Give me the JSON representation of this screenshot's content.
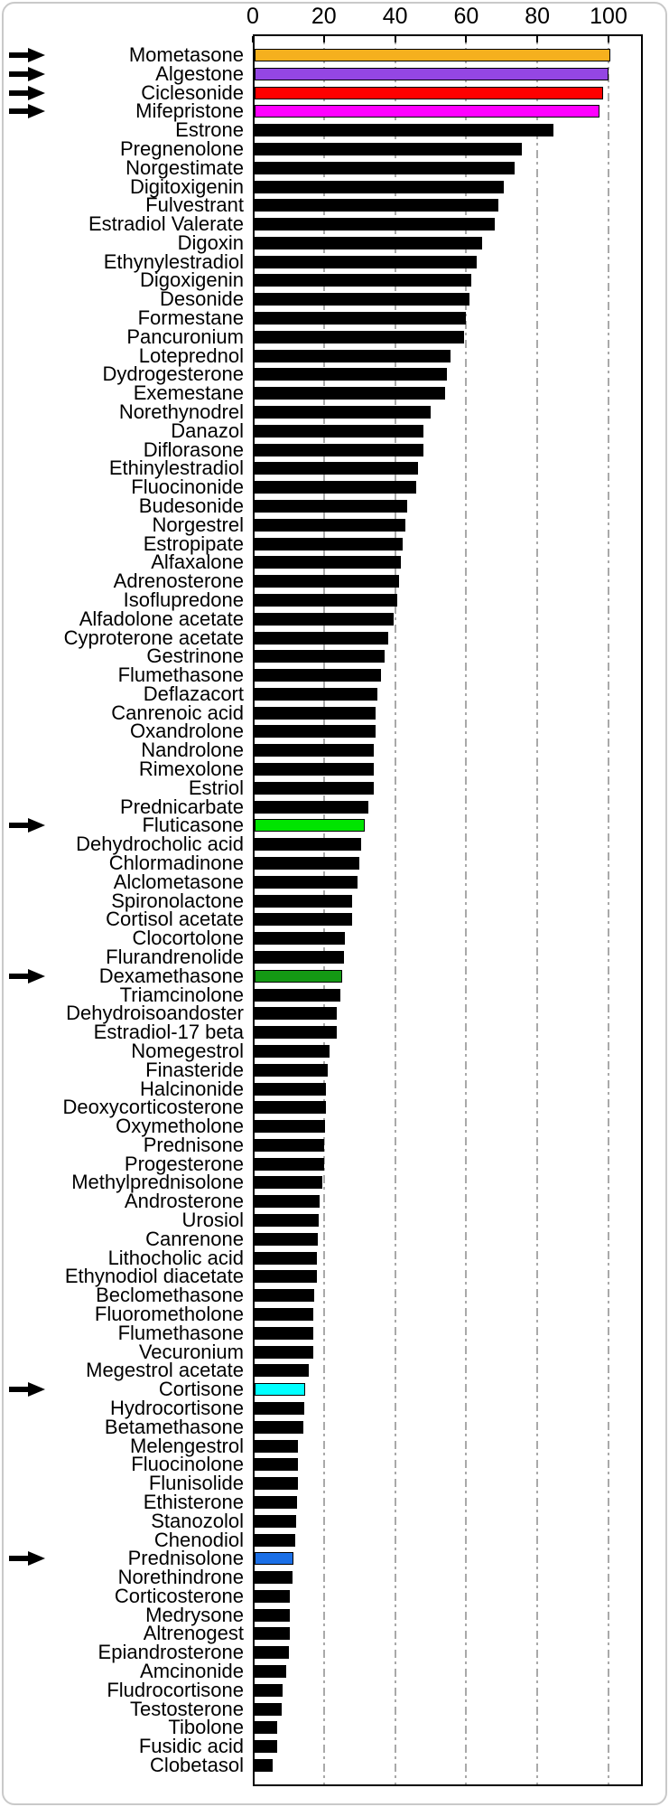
{
  "chart_data": {
    "type": "bar",
    "orientation": "horizontal",
    "title": "",
    "xlabel": "",
    "ylabel": "",
    "axis": {
      "position": "top",
      "ticks": [
        "0",
        "20",
        "40",
        "60",
        "80",
        "100"
      ],
      "tick_values": [
        0,
        20,
        40,
        60,
        80,
        100
      ],
      "range": [
        0,
        110
      ],
      "gridline_values": [
        20,
        40,
        60,
        80,
        100
      ],
      "grid_style": "dash-dot",
      "grid_color": "#a9a9a9",
      "grid_on": true,
      "legend": "none"
    },
    "default_bar_color": "#000000",
    "highlight_border_color": "#000000",
    "arrow_color": "#000000",
    "items": [
      {
        "label": "Mometasone",
        "value": 100,
        "color": "#F5B01E",
        "arrow": true
      },
      {
        "label": "Algestone",
        "value": 99.5,
        "color": "#9446E3",
        "arrow": true
      },
      {
        "label": "Ciclesonide",
        "value": 98,
        "color": "#FF0000",
        "arrow": true
      },
      {
        "label": "Mifepristone",
        "value": 97,
        "color": "#FF00FF",
        "arrow": true
      },
      {
        "label": "Estrone",
        "value": 84
      },
      {
        "label": "Pregnenolone",
        "value": 75
      },
      {
        "label": "Norgestimate",
        "value": 73
      },
      {
        "label": "Digitoxigenin",
        "value": 70
      },
      {
        "label": "Fulvestrant",
        "value": 68.5
      },
      {
        "label": "Estradiol Valerate",
        "value": 67.5
      },
      {
        "label": "Digoxin",
        "value": 64
      },
      {
        "label": "Ethynylestradiol",
        "value": 62.5
      },
      {
        "label": "Digoxigenin",
        "value": 61
      },
      {
        "label": "Desonide",
        "value": 60.5
      },
      {
        "label": "Formestane",
        "value": 59.5
      },
      {
        "label": "Pancuronium",
        "value": 59
      },
      {
        "label": "Loteprednol",
        "value": 55
      },
      {
        "label": "Dydrogesterone",
        "value": 54
      },
      {
        "label": "Exemestane",
        "value": 53.5
      },
      {
        "label": "Norethynodrel",
        "value": 49.5
      },
      {
        "label": "Danazol",
        "value": 47.5
      },
      {
        "label": "Diflorasone",
        "value": 47.5
      },
      {
        "label": "Ethinylestradiol",
        "value": 46
      },
      {
        "label": "Fluocinonide",
        "value": 45.5
      },
      {
        "label": "Budesonide",
        "value": 43
      },
      {
        "label": "Norgestrel",
        "value": 42.5
      },
      {
        "label": "Estropipate",
        "value": 41.5
      },
      {
        "label": "Alfaxalone",
        "value": 41
      },
      {
        "label": "Adrenosterone",
        "value": 40.5
      },
      {
        "label": "Isoflupredone",
        "value": 40
      },
      {
        "label": "Alfadolone acetate",
        "value": 39
      },
      {
        "label": "Cyproterone acetate",
        "value": 37.5
      },
      {
        "label": "Gestrinone",
        "value": 36.5
      },
      {
        "label": "Flumethasone",
        "value": 35.5
      },
      {
        "label": "Deflazacort",
        "value": 34.5
      },
      {
        "label": "Canrenoic acid",
        "value": 34
      },
      {
        "label": "Oxandrolone",
        "value": 34
      },
      {
        "label": "Nandrolone",
        "value": 33.5
      },
      {
        "label": "Rimexolone",
        "value": 33.5
      },
      {
        "label": "Estriol",
        "value": 33.5
      },
      {
        "label": "Prednicarbate",
        "value": 32
      },
      {
        "label": "Fluticasone",
        "value": 31,
        "color": "#00E400",
        "arrow": true
      },
      {
        "label": "Dehydrocholic acid",
        "value": 30
      },
      {
        "label": "Chlormadinone",
        "value": 29.5
      },
      {
        "label": "Alclometasone",
        "value": 29
      },
      {
        "label": "Spironolactone",
        "value": 27.5
      },
      {
        "label": "Cortisol acetate",
        "value": 27.5
      },
      {
        "label": "Clocortolone",
        "value": 25.5
      },
      {
        "label": "Flurandrenolide",
        "value": 25
      },
      {
        "label": "Dexamethasone",
        "value": 24.5,
        "color": "#149914",
        "arrow": true
      },
      {
        "label": "Triamcinolone",
        "value": 24
      },
      {
        "label": "Dehydroisoandoster",
        "value": 23
      },
      {
        "label": "Estradiol-17 beta",
        "value": 23
      },
      {
        "label": "Nomegestrol",
        "value": 21
      },
      {
        "label": "Finasteride",
        "value": 20.5
      },
      {
        "label": "Halcinonide",
        "value": 20
      },
      {
        "label": "Deoxycorticosterone",
        "value": 20
      },
      {
        "label": "Oxymetholone",
        "value": 19.8
      },
      {
        "label": "Prednisone",
        "value": 19.5
      },
      {
        "label": "Progesterone",
        "value": 19.5
      },
      {
        "label": "Methylprednisolone",
        "value": 19
      },
      {
        "label": "Androsterone",
        "value": 18.2
      },
      {
        "label": "Urosiol",
        "value": 18
      },
      {
        "label": "Canrenone",
        "value": 17.8
      },
      {
        "label": "Lithocholic acid",
        "value": 17.4
      },
      {
        "label": "Ethynodiol diacetate",
        "value": 17.4
      },
      {
        "label": "Beclomethasone",
        "value": 16.8
      },
      {
        "label": "Fluorometholone",
        "value": 16.6
      },
      {
        "label": "Flumethasone",
        "value": 16.6
      },
      {
        "label": "Vecuronium",
        "value": 16.4
      },
      {
        "label": "Megestrol acetate",
        "value": 15.2
      },
      {
        "label": "Cortisone",
        "value": 14.2,
        "color": "#00FFFF",
        "arrow": true
      },
      {
        "label": "Hydrocortisone",
        "value": 14
      },
      {
        "label": "Betamethasone",
        "value": 13.8
      },
      {
        "label": "Melengestrol",
        "value": 12.3
      },
      {
        "label": "Fluocinolone",
        "value": 12.3
      },
      {
        "label": "Flunisolide",
        "value": 12.2
      },
      {
        "label": "Ethisterone",
        "value": 12
      },
      {
        "label": "Stanozolol",
        "value": 11.8
      },
      {
        "label": "Chenodiol",
        "value": 11.4
      },
      {
        "label": "Prednisolone",
        "value": 10.8,
        "color": "#1B6FE6",
        "arrow": true
      },
      {
        "label": "Norethindrone",
        "value": 10.6
      },
      {
        "label": "Corticosterone",
        "value": 10
      },
      {
        "label": "Medrysone",
        "value": 10
      },
      {
        "label": "Altrenogest",
        "value": 9.8
      },
      {
        "label": "Epiandrosterone",
        "value": 9.6
      },
      {
        "label": "Amcinonide",
        "value": 8.9
      },
      {
        "label": "Fludrocortisone",
        "value": 7.8
      },
      {
        "label": "Testosterone",
        "value": 7.5
      },
      {
        "label": "Tibolone",
        "value": 6.3
      },
      {
        "label": "Fusidic acid",
        "value": 6.3
      },
      {
        "label": "Clobetasol",
        "value": 5
      }
    ]
  }
}
